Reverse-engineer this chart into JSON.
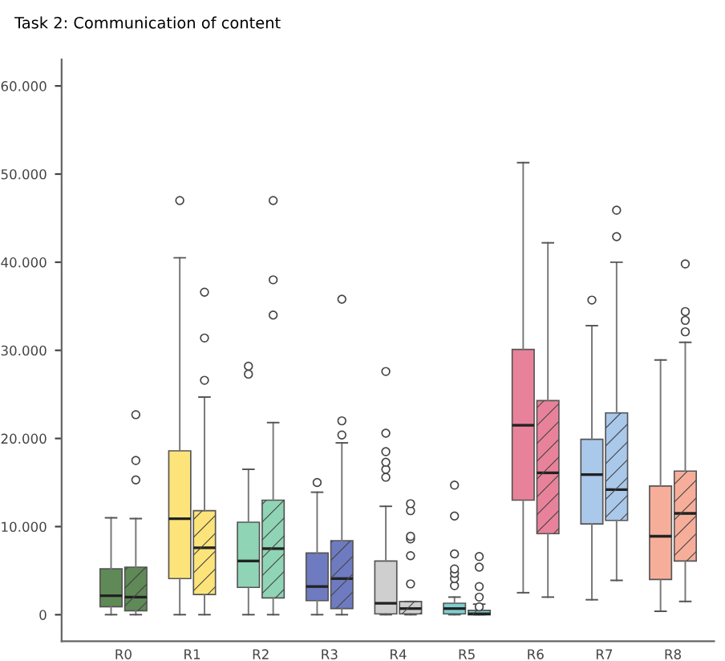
{
  "chart_data": {
    "type": "box",
    "title": "Task 2: Communication of content",
    "categories": [
      "R0",
      "R1",
      "R2",
      "R3",
      "R4",
      "R5",
      "R6",
      "R7",
      "R8"
    ],
    "ylim": [
      -3000,
      63000
    ],
    "yticks": [
      {
        "value": 0,
        "label": "0"
      },
      {
        "value": 10000,
        "label": "10.000"
      },
      {
        "value": 20000,
        "label": "20.000"
      },
      {
        "value": 30000,
        "label": "30.000"
      },
      {
        "value": 40000,
        "label": "40.000"
      },
      {
        "value": 50000,
        "label": "50.000"
      },
      {
        "value": 60000,
        "label": "60.000"
      }
    ],
    "grid": false,
    "legend": false,
    "series": [
      {
        "colors": [
          "#5f8a57",
          "#fde47a",
          "#8fd4b5",
          "#6f7bc0",
          "#cfcfcf",
          "#7fcfd0",
          "#e8829a",
          "#a9c8ea",
          "#f6ae9a"
        ],
        "boxes": [
          {
            "low": 0,
            "q1": 900,
            "median": 2150,
            "q3": 5200,
            "high": 11000
          },
          {
            "low": 0,
            "q1": 4100,
            "median": 10900,
            "q3": 18600,
            "high": 40500,
            "outliers": [
              47000
            ]
          },
          {
            "low": 0,
            "q1": 3100,
            "median": 6100,
            "q3": 10500,
            "high": 16500,
            "outliers": [
              27300,
              28200
            ]
          },
          {
            "low": 0,
            "q1": 1600,
            "median": 3200,
            "q3": 7000,
            "high": 13900,
            "outliers": [
              15000
            ]
          },
          {
            "low": 0,
            "q1": 100,
            "median": 1300,
            "q3": 6100,
            "high": 12300,
            "outliers": [
              15600,
              16500,
              17300,
              18500,
              20600,
              27600
            ]
          },
          {
            "low": 0,
            "q1": 100,
            "median": 700,
            "q3": 1300,
            "high": 2000,
            "outliers": [
              3300,
              4100,
              4700,
              5200,
              6900,
              11200,
              14700
            ]
          },
          {
            "low": 2500,
            "q1": 13000,
            "median": 21500,
            "q3": 30100,
            "high": 51300
          },
          {
            "low": 1700,
            "q1": 10300,
            "median": 15900,
            "q3": 19900,
            "high": 32800,
            "outliers": [
              35700
            ]
          },
          {
            "low": 400,
            "q1": 4000,
            "median": 8900,
            "q3": 14600,
            "high": 28900
          }
        ]
      },
      {
        "colors": [
          "#5f8a57",
          "#fde47a",
          "#8fd4b5",
          "#6f7bc0",
          "#cfcfcf",
          "#7fcfd0",
          "#e8829a",
          "#a9c8ea",
          "#f6ae9a"
        ],
        "boxes": [
          {
            "low": 0,
            "q1": 450,
            "median": 2000,
            "q3": 5400,
            "high": 10900,
            "outliers": [
              15300,
              17500,
              22700
            ]
          },
          {
            "low": 0,
            "q1": 2300,
            "median": 7600,
            "q3": 11800,
            "high": 24700,
            "outliers": [
              26600,
              31400,
              36600
            ]
          },
          {
            "low": 0,
            "q1": 1900,
            "median": 7500,
            "q3": 13000,
            "high": 21800,
            "outliers": [
              34000,
              38000,
              47000
            ]
          },
          {
            "low": 0,
            "q1": 700,
            "median": 4100,
            "q3": 8400,
            "high": 19500,
            "outliers": [
              20400,
              22000,
              35800
            ]
          },
          {
            "low": 0,
            "q1": 100,
            "median": 700,
            "q3": 1500,
            "high": 1500,
            "outliers": [
              3500,
              6700,
              8600,
              8900,
              11800,
              12600
            ]
          },
          {
            "low": 0,
            "q1": 0,
            "median": 100,
            "q3": 500,
            "high": 1200,
            "outliers": [
              900,
              2000,
              3200,
              5400,
              6600
            ]
          },
          {
            "low": 2000,
            "q1": 9200,
            "median": 16100,
            "q3": 24300,
            "high": 42200
          },
          {
            "low": 3900,
            "q1": 10700,
            "median": 14200,
            "q3": 22900,
            "high": 40000,
            "outliers": [
              42900,
              45900
            ]
          },
          {
            "low": 1500,
            "q1": 6100,
            "median": 11500,
            "q3": 16300,
            "high": 30900,
            "outliers": [
              32100,
              33400,
              34400,
              39800
            ]
          }
        ]
      }
    ]
  }
}
